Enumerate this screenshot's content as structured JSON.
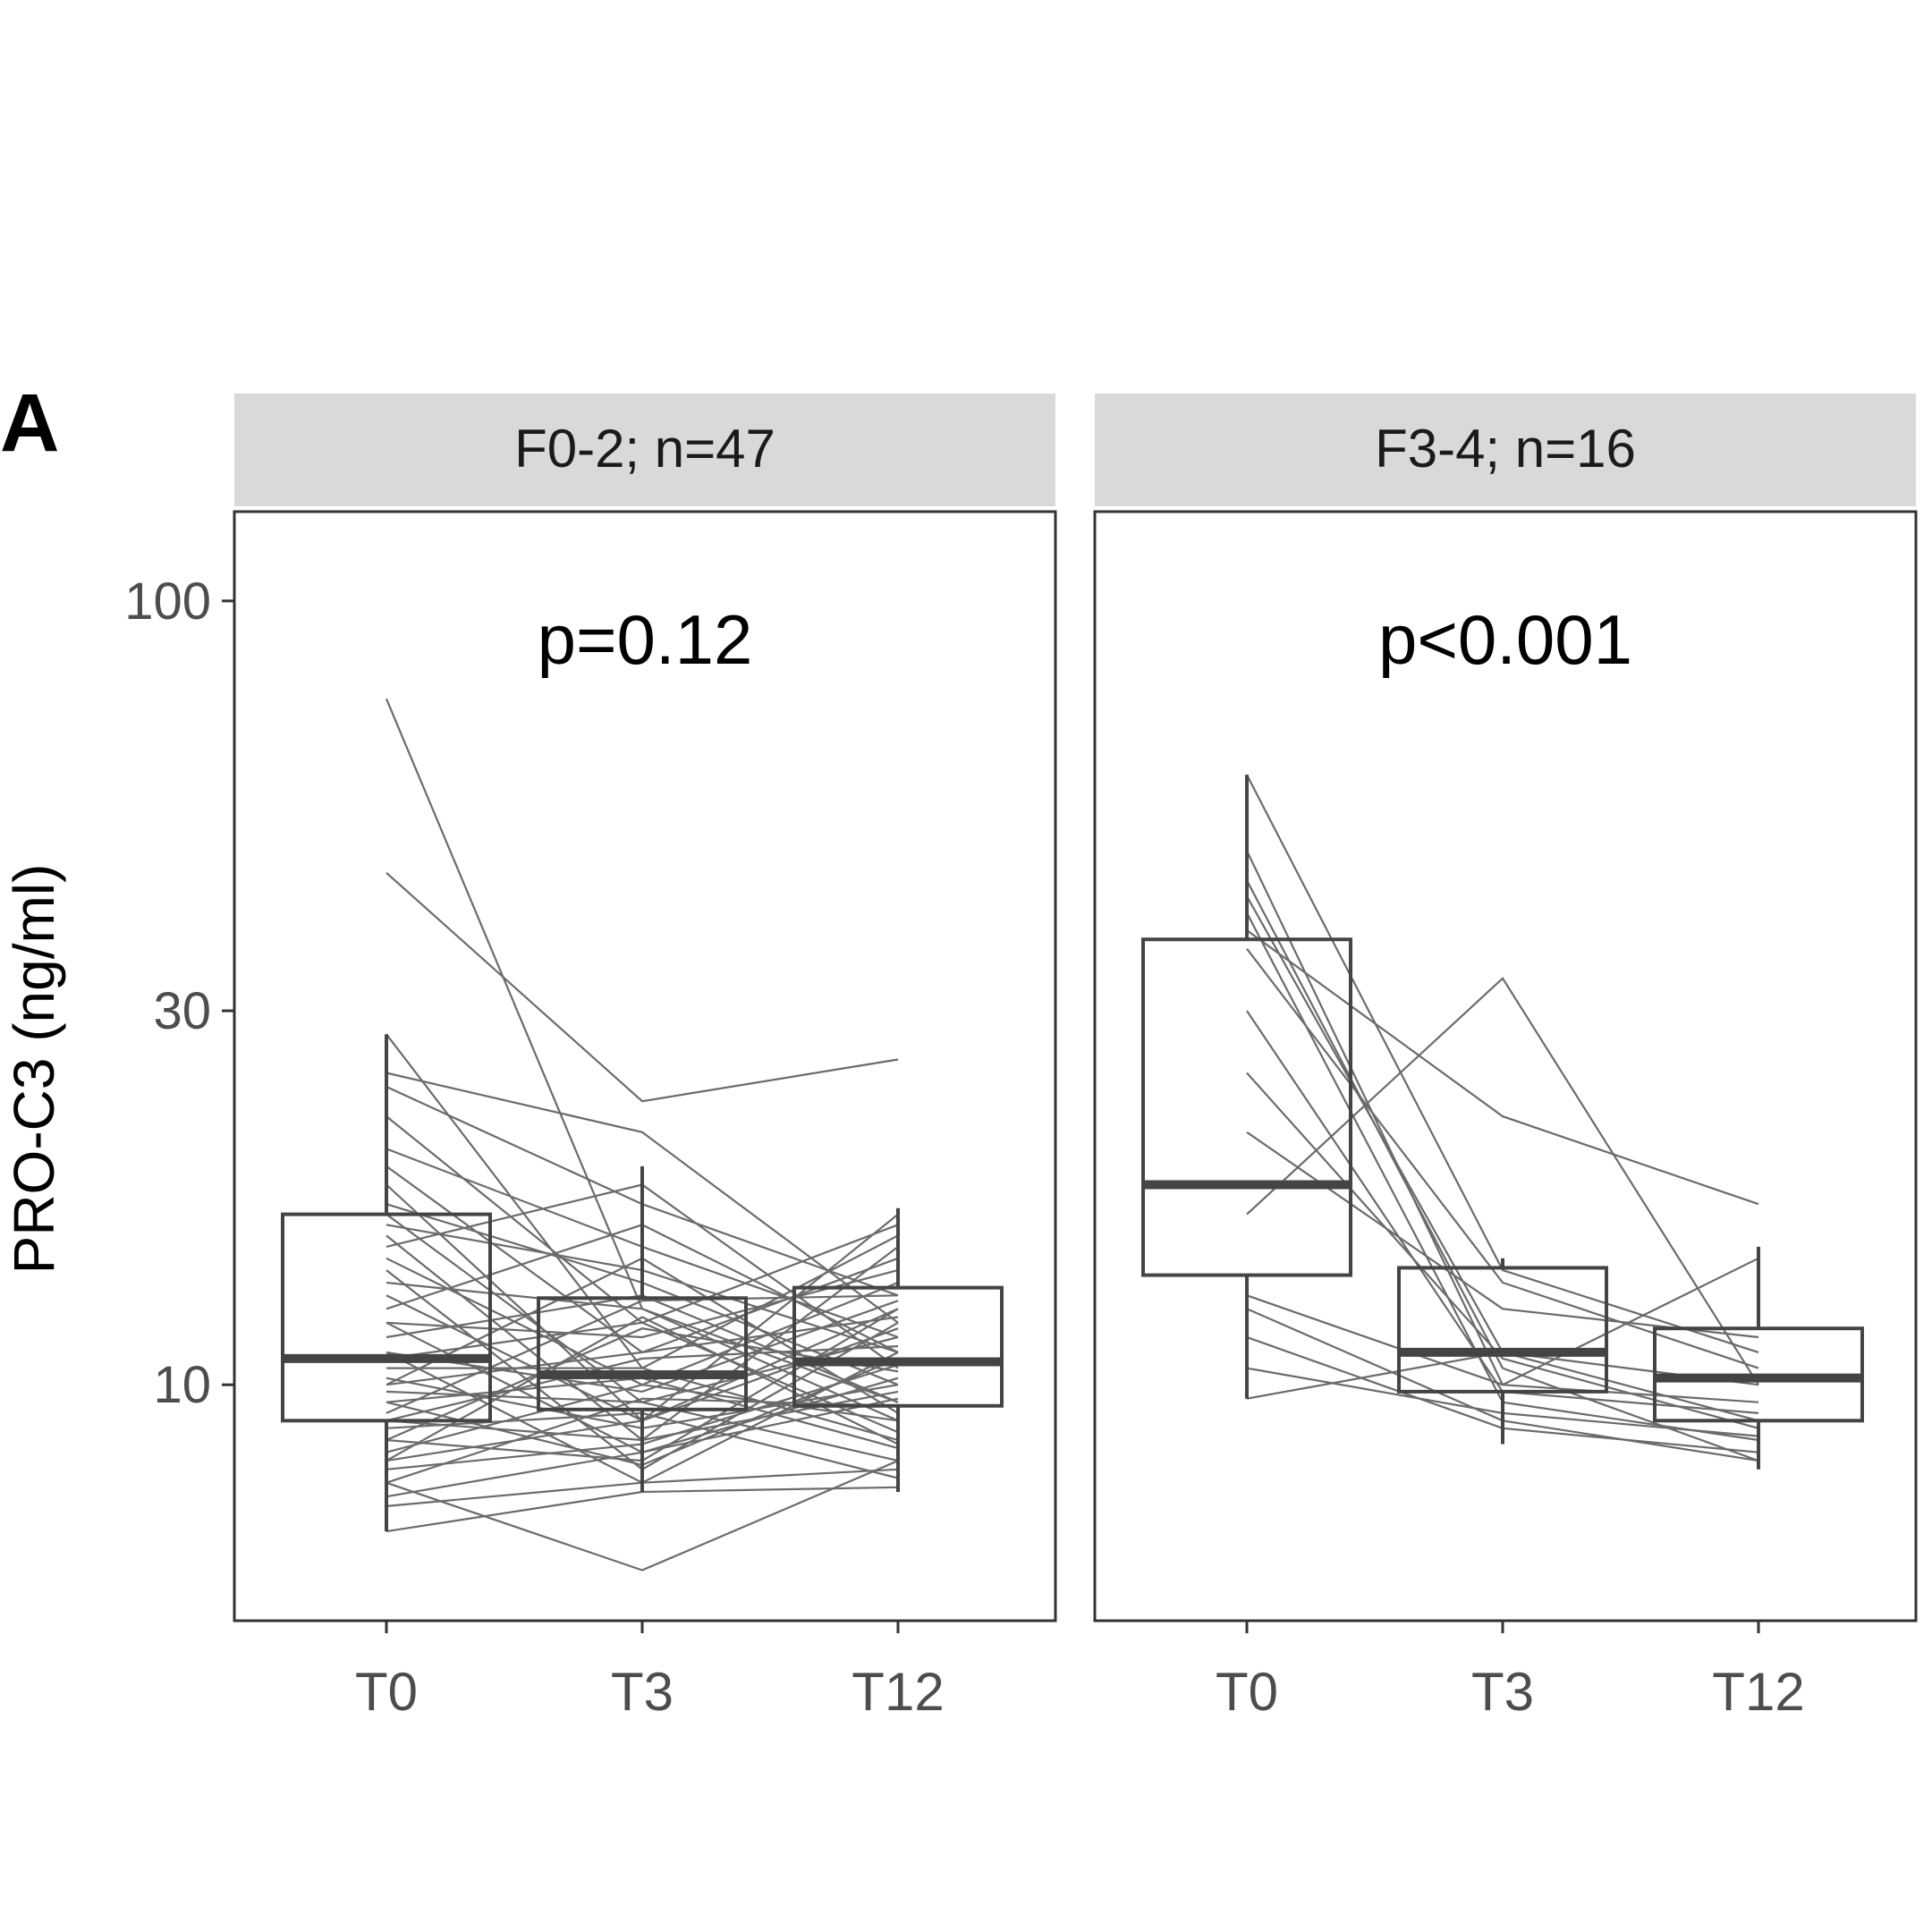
{
  "panel_letter": "A",
  "chart_data": {
    "type": "box",
    "ylabel": "PRO-C3 (ng/ml)",
    "xlabel": "",
    "y_scale": "log",
    "ylim": [
      5,
      130
    ],
    "y_ticks": [
      10,
      30,
      100
    ],
    "y_tick_labels": [
      "10",
      "30",
      "100"
    ],
    "categories": [
      "T0",
      "T3",
      "T12"
    ],
    "grid": false,
    "facets": [
      {
        "label": "F0-2; n=47",
        "annotation": "p=0.12",
        "boxes": [
          {
            "category": "T0",
            "whisker_low": 6.5,
            "q1": 9.0,
            "median": 10.8,
            "q3": 16.5,
            "whisker_high": 28.0
          },
          {
            "category": "T3",
            "whisker_low": 7.3,
            "q1": 9.3,
            "median": 10.3,
            "q3": 12.9,
            "whisker_high": 19.0
          },
          {
            "category": "T12",
            "whisker_low": 7.3,
            "q1": 9.4,
            "median": 10.7,
            "q3": 13.3,
            "whisker_high": 16.8
          }
        ],
        "subjects": [
          [
            75,
            12.5,
            9.5
          ],
          [
            45,
            23.0,
            26.0
          ],
          [
            28,
            10.5,
            8.5
          ],
          [
            25,
            21.0,
            12.0
          ],
          [
            24,
            17.0,
            13.0
          ],
          [
            22,
            12.0,
            16.0
          ],
          [
            20,
            15.0,
            11.5
          ],
          [
            19,
            11.0,
            14.5
          ],
          [
            18,
            9.0,
            12.5
          ],
          [
            17,
            13.5,
            10.0
          ],
          [
            16.5,
            9.5,
            8.0
          ],
          [
            16,
            14.0,
            11.0
          ],
          [
            15.5,
            8.5,
            15.0
          ],
          [
            15,
            18.0,
            10.5
          ],
          [
            14.5,
            10.0,
            13.5
          ],
          [
            14,
            7.8,
            12.0
          ],
          [
            13.5,
            12.5,
            9.0
          ],
          [
            13,
            9.0,
            16.5
          ],
          [
            12.5,
            16.0,
            11.0
          ],
          [
            12,
            8.2,
            10.2
          ],
          [
            12,
            11.5,
            14.0
          ],
          [
            11.5,
            13.0,
            9.5
          ],
          [
            11,
            9.8,
            12.8
          ],
          [
            11,
            7.5,
            11.0
          ],
          [
            10.8,
            12.0,
            8.7
          ],
          [
            10.5,
            10.5,
            15.5
          ],
          [
            10.2,
            8.8,
            10.0
          ],
          [
            10,
            11.0,
            12.2
          ],
          [
            10,
            14.5,
            9.2
          ],
          [
            9.8,
            9.5,
            11.5
          ],
          [
            9.5,
            10.2,
            8.3
          ],
          [
            9.5,
            7.9,
            10.8
          ],
          [
            9.2,
            12.8,
            13.0
          ],
          [
            9,
            8.5,
            9.8
          ],
          [
            9,
            10.8,
            11.2
          ],
          [
            8.8,
            9.2,
            7.6
          ],
          [
            8.5,
            11.8,
            10.4
          ],
          [
            8.5,
            8.0,
            12.5
          ],
          [
            8.2,
            10.0,
            9.0
          ],
          [
            8,
            9.0,
            11.8
          ],
          [
            8,
            12.2,
            8.4
          ],
          [
            7.8,
            8.4,
            10.6
          ],
          [
            7.5,
            9.6,
            9.4
          ],
          [
            7.5,
            5.8,
            8.0
          ],
          [
            7.2,
            8.2,
            9.6
          ],
          [
            7,
            7.5,
            7.8
          ],
          [
            6.5,
            7.3,
            7.4
          ]
        ]
      },
      {
        "label": "F3-4; n=16",
        "annotation": "p<0.001",
        "boxes": [
          {
            "category": "T0",
            "whisker_low": 9.6,
            "q1": 13.8,
            "median": 18.0,
            "q3": 37.0,
            "whisker_high": 60.0
          },
          {
            "category": "T3",
            "whisker_low": 8.4,
            "q1": 9.8,
            "median": 11.0,
            "q3": 14.1,
            "whisker_high": 14.5
          },
          {
            "category": "T12",
            "whisker_low": 7.8,
            "q1": 9.0,
            "median": 10.2,
            "q3": 11.8,
            "whisker_high": 15.0
          }
        ],
        "subjects": [
          [
            60,
            14.0,
            11.0
          ],
          [
            48,
            10.0,
            9.5
          ],
          [
            44,
            10.5,
            8.0
          ],
          [
            42,
            11.0,
            9.0
          ],
          [
            40,
            9.5,
            8.5
          ],
          [
            38,
            22.0,
            17.0
          ],
          [
            36,
            13.5,
            10.5
          ],
          [
            30,
            9.8,
            9.2
          ],
          [
            25,
            10.8,
            8.8
          ],
          [
            21,
            12.5,
            11.5
          ],
          [
            16.5,
            33.0,
            10.0
          ],
          [
            13,
            10.0,
            14.5
          ],
          [
            12.5,
            9.0,
            8.0
          ],
          [
            11.5,
            8.8,
            8.2
          ],
          [
            10.5,
            9.2,
            8.6
          ],
          [
            9.6,
            11.0,
            10.0
          ]
        ]
      }
    ]
  }
}
